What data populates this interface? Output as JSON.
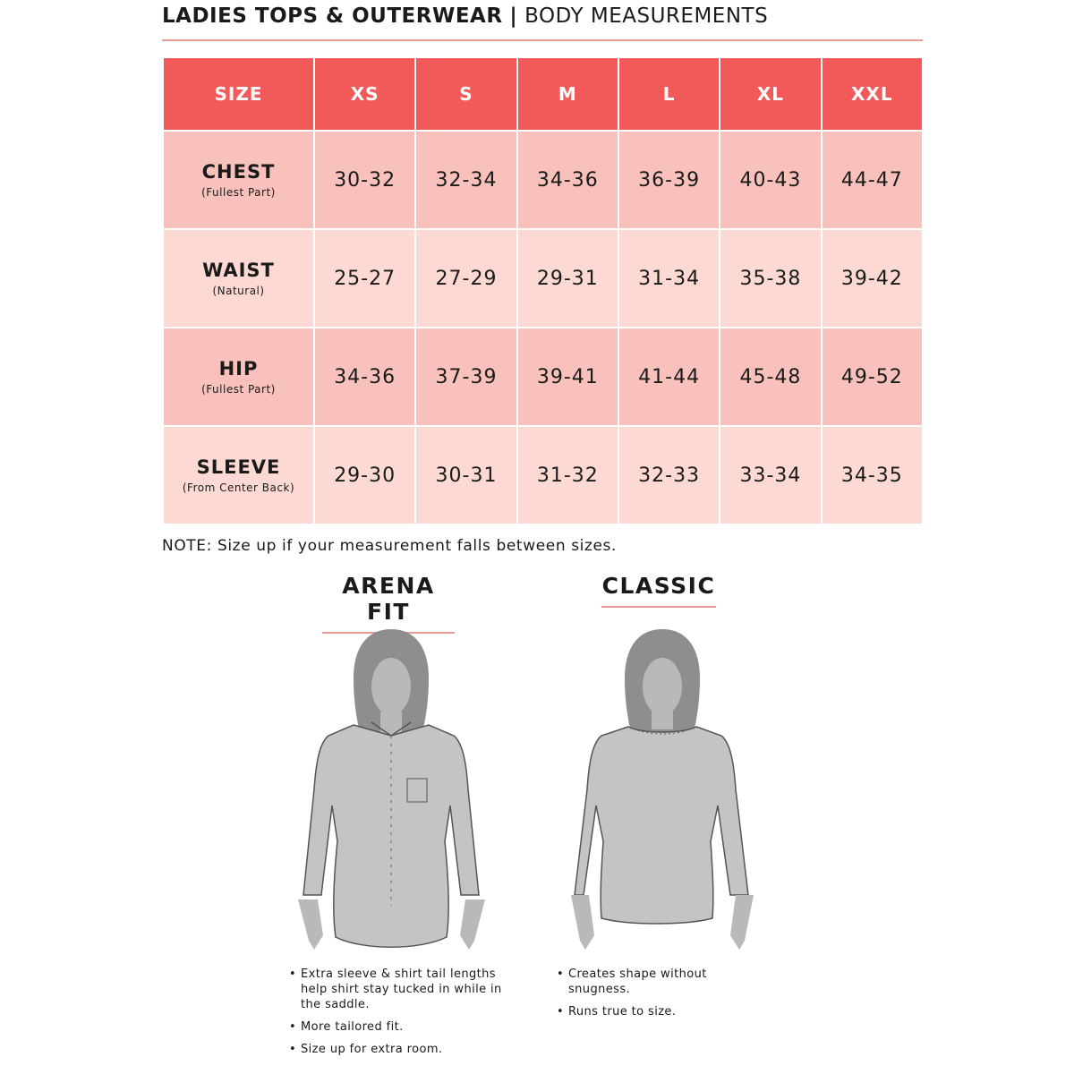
{
  "header": {
    "title_bold": "LADIES TOPS & OUTERWEAR",
    "separator": "|",
    "title_light": "BODY MEASUREMENTS"
  },
  "colors": {
    "header": "#f25a5a",
    "row_dark": "#f8c1bb",
    "row_light": "#fcd9d3",
    "accent_rule": "#e89a96"
  },
  "table": {
    "columns": [
      "SIZE",
      "XS",
      "S",
      "M",
      "L",
      "XL",
      "XXL"
    ],
    "rows": [
      {
        "label": "CHEST",
        "sub": "(Fullest Part)",
        "values": [
          "30-32",
          "32-34",
          "34-36",
          "36-39",
          "40-43",
          "44-47"
        ]
      },
      {
        "label": "WAIST",
        "sub": "(Natural)",
        "values": [
          "25-27",
          "27-29",
          "29-31",
          "31-34",
          "35-38",
          "39-42"
        ]
      },
      {
        "label": "HIP",
        "sub": "(Fullest Part)",
        "values": [
          "34-36",
          "37-39",
          "39-41",
          "41-44",
          "45-48",
          "49-52"
        ]
      },
      {
        "label": "SLEEVE",
        "sub": "(From Center Back)",
        "values": [
          "29-30",
          "30-31",
          "31-32",
          "32-33",
          "33-34",
          "34-35"
        ]
      }
    ]
  },
  "note": "NOTE: Size up if your measurement falls between sizes.",
  "fits": [
    {
      "title": "ARENA FIT",
      "figure": "button-shirt-figure",
      "bullets": [
        "Extra sleeve & shirt tail lengths help shirt stay tucked in while in the saddle.",
        "More tailored fit.",
        "Size up for extra room."
      ]
    },
    {
      "title": "CLASSIC",
      "figure": "crewneck-figure",
      "bullets": [
        "Creates shape without snugness.",
        "Runs true to size."
      ]
    }
  ]
}
